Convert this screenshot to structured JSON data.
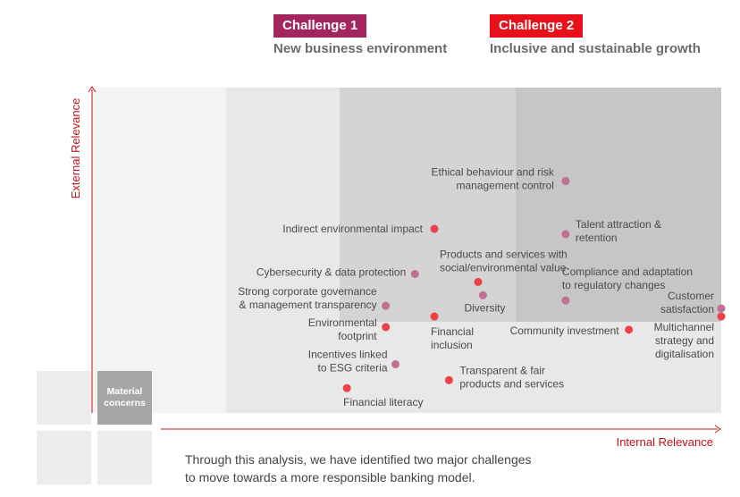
{
  "challenges": [
    {
      "badge": "Challenge 1",
      "subtitle": "New business environment",
      "color": "#a2265d"
    },
    {
      "badge": "Challenge 2",
      "subtitle": "Inclusive and sustainable growth",
      "color": "#e8101a"
    }
  ],
  "legend": {
    "material_label": "Material concerns"
  },
  "caption": {
    "line1": "Through this analysis, we have identified two major challenges",
    "line2": "to move towards a more responsible banking model."
  },
  "colors": {
    "challenge1": "#c06f95",
    "challenge2": "#ec4149",
    "axis": "#c0121b"
  },
  "chart_data": {
    "type": "scatter",
    "xlabel": "Internal Relevance",
    "ylabel": "External Relevance",
    "xlim": [
      0,
      100
    ],
    "ylim": [
      0,
      100
    ],
    "series": [
      {
        "name": "Challenge 1",
        "points": [
          {
            "label": "Ethical behaviour and risk management control",
            "x": 68,
            "y": 85
          },
          {
            "label": "Talent attraction & retention",
            "x": 68,
            "y": 65
          },
          {
            "label": "Cybersecurity & data protection",
            "x": 37,
            "y": 50
          },
          {
            "label": "Diversity",
            "x": 51,
            "y": 42
          },
          {
            "label": "Compliance and adaptation to regulatory changes",
            "x": 68,
            "y": 40
          },
          {
            "label": "Strong corporate governance & management transparency",
            "x": 31,
            "y": 38
          },
          {
            "label": "Customer satisfaction",
            "x": 100,
            "y": 37
          },
          {
            "label": "Incentives linked to ESG criteria",
            "x": 33,
            "y": 16
          }
        ]
      },
      {
        "name": "Challenge 2",
        "points": [
          {
            "label": "Indirect environmental impact",
            "x": 41,
            "y": 67
          },
          {
            "label": "Products and services with social/environmental value",
            "x": 50,
            "y": 47
          },
          {
            "label": "Financial inclusion",
            "x": 41,
            "y": 34
          },
          {
            "label": "Environmental footprint",
            "x": 31,
            "y": 30
          },
          {
            "label": "Multichannel strategy and digitalisation",
            "x": 100,
            "y": 34
          },
          {
            "label": "Community investment",
            "x": 81,
            "y": 29
          },
          {
            "label": "Transparent & fair products and services",
            "x": 44,
            "y": 10
          },
          {
            "label": "Financial literacy",
            "x": 23,
            "y": 7
          }
        ]
      }
    ],
    "label_lines": {
      "Ethical behaviour and risk management control": [
        "Ethical behaviour and risk",
        "management control"
      ],
      "Talent attraction & retention": [
        "Talent attraction &",
        "retention"
      ],
      "Cybersecurity & data protection": [
        "Cybersecurity & data protection"
      ],
      "Diversity": [
        "Diversity"
      ],
      "Compliance and adaptation to regulatory changes": [
        "Compliance and adaptation",
        "to regulatory changes"
      ],
      "Strong corporate governance & management transparency": [
        "Strong corporate governance",
        "& management transparency"
      ],
      "Customer satisfaction": [
        "Customer",
        "satisfaction"
      ],
      "Incentives linked to ESG criteria": [
        "Incentives linked",
        "to ESG criteria"
      ],
      "Indirect environmental impact": [
        "Indirect environmental impact"
      ],
      "Products and services with social/environmental value": [
        "Products and services with",
        "social/environmental value"
      ],
      "Financial inclusion": [
        "Financial",
        "inclusion"
      ],
      "Environmental footprint": [
        "Environmental",
        "footprint"
      ],
      "Multichannel strategy and digitalisation": [
        "Multichannel",
        "strategy and",
        "digitalisation"
      ],
      "Community investment": [
        "Community investment"
      ],
      "Transparent & fair products and services": [
        "Transparent & fair",
        "products and services"
      ],
      "Financial literacy": [
        "Financial literacy"
      ]
    }
  }
}
